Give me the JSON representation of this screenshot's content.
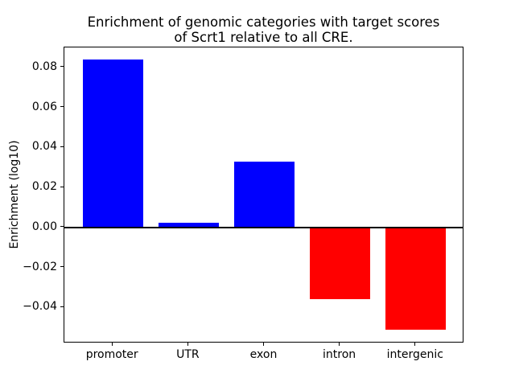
{
  "figure": {
    "title_line1": "Enrichment of genomic categories with target scores",
    "title_line2": "of Scrt1 relative to all CRE.",
    "ylabel": "Enrichment (log10)",
    "background_color": "#ffffff",
    "text_color": "#000000"
  },
  "chart_data": {
    "type": "bar",
    "title": "Enrichment of genomic categories with target scores\nof Scrt1 relative to all CRE.",
    "xlabel": "",
    "ylabel": "Enrichment (log10)",
    "categories": [
      "promoter",
      "UTR",
      "exon",
      "intron",
      "intergenic"
    ],
    "values": [
      0.084,
      0.0025,
      0.033,
      -0.036,
      -0.051
    ],
    "bar_colors": [
      "#0000ff",
      "#0000ff",
      "#0000ff",
      "#ff0000",
      "#ff0000"
    ],
    "positive_color": "#0000ff",
    "negative_color": "#ff0000",
    "ylim": [
      -0.058,
      0.09
    ],
    "yticks": [
      0.08,
      0.06,
      0.04,
      0.02,
      0.0,
      -0.02,
      -0.04
    ],
    "ytick_labels": [
      "0.08",
      "0.06",
      "0.04",
      "0.02",
      "0.00",
      "−0.02",
      "−0.04"
    ],
    "bar_width_fraction": 0.8,
    "zero_line": true,
    "grid": false,
    "legend": false
  }
}
